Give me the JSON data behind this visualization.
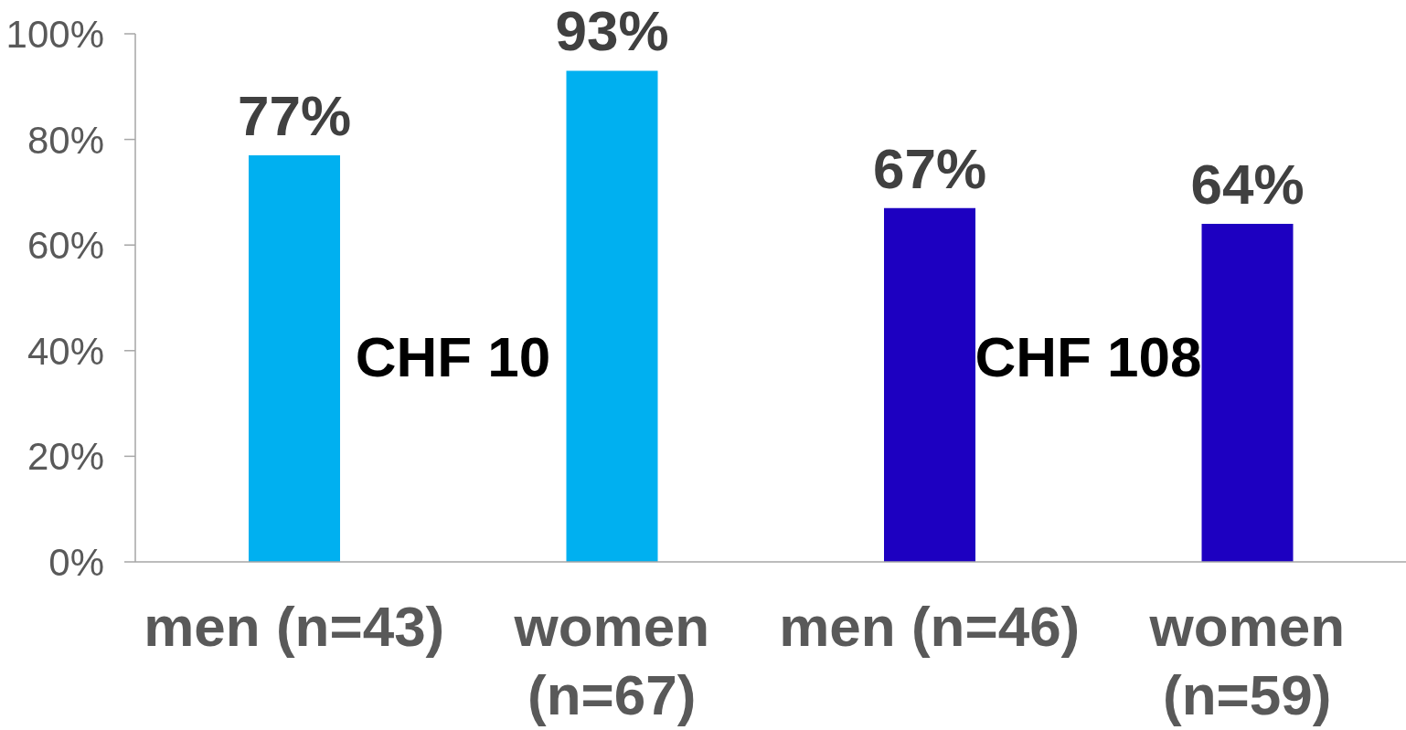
{
  "chart_data": {
    "type": "bar",
    "categories": [
      "men (n=43)",
      "women (n=67)",
      "men (n=46)",
      "women (n=59)"
    ],
    "values": [
      77,
      93,
      67,
      64
    ],
    "colors": [
      "#00b0f0",
      "#00b0f0",
      "#1d00c1",
      "#1d00c1"
    ],
    "value_labels": [
      "77%",
      "93%",
      "67%",
      "64%"
    ],
    "ylim": [
      0,
      100
    ],
    "yticks": [
      {
        "value": 0,
        "label": "0%"
      },
      {
        "value": 20,
        "label": "20%"
      },
      {
        "value": 40,
        "label": "40%"
      },
      {
        "value": 60,
        "label": "60%"
      },
      {
        "value": 80,
        "label": "80%"
      },
      {
        "value": 100,
        "label": "100%"
      }
    ],
    "annotations": [
      "CHF 10",
      "CHF 108"
    ]
  }
}
